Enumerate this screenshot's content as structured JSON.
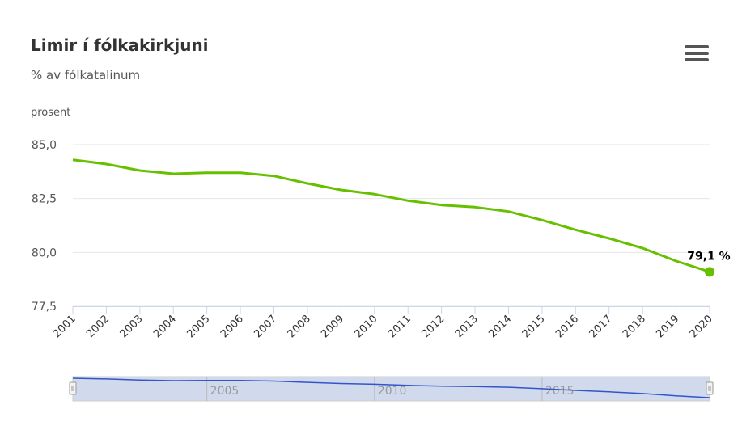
{
  "header": {
    "title": "Limir í fólkakirkjuni",
    "subtitle": "% av fólkatalinum",
    "menu_icon": "hamburger-menu-icon"
  },
  "colors": {
    "series": "#66c000",
    "grid": "#e6e6e6",
    "axis": "#ccd6eb",
    "navigator_fill": "rgba(102,133,194,0.3)",
    "navigator_line": "#3355cc"
  },
  "chart_data": {
    "type": "line",
    "title": "Limir í fólkakirkjuni",
    "subtitle": "% av fólkatalinum",
    "ylabel": "prosent",
    "xlabel": "",
    "ylim": [
      77.5,
      85.0
    ],
    "yticks": [
      "77,5",
      "80,0",
      "82,5",
      "85,0"
    ],
    "ytick_values": [
      77.5,
      80.0,
      82.5,
      85.0
    ],
    "grid": true,
    "x": [
      "2001",
      "2002",
      "2003",
      "2004",
      "2005",
      "2006",
      "2007",
      "2008",
      "2009",
      "2010",
      "2011",
      "2012",
      "2013",
      "2014",
      "2015",
      "2016",
      "2017",
      "2018",
      "2019",
      "2020"
    ],
    "series": [
      {
        "values": [
          84.3,
          84.1,
          83.8,
          83.65,
          83.7,
          83.7,
          83.55,
          83.2,
          82.9,
          82.7,
          82.4,
          82.2,
          82.1,
          81.9,
          81.5,
          81.05,
          80.65,
          80.2,
          79.6,
          79.1
        ]
      }
    ],
    "last_point_label": "79,1 %",
    "navigator": {
      "labels": [
        "2005",
        "2010",
        "2015"
      ]
    }
  }
}
